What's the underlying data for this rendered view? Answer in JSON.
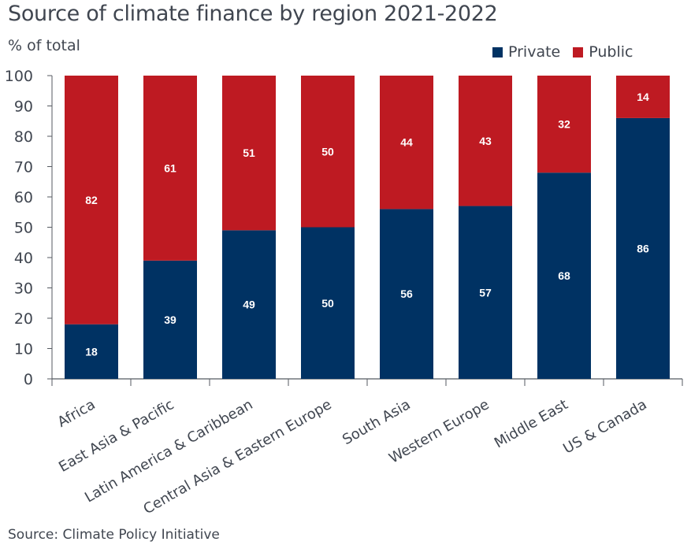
{
  "chart_data": {
    "type": "bar",
    "stacked": true,
    "title": "Source of climate finance by region 2021-2022",
    "ylabel": "% of total",
    "xlabel": "",
    "ylim": [
      0,
      100
    ],
    "yticks": [
      0,
      10,
      20,
      30,
      40,
      50,
      60,
      70,
      80,
      90,
      100
    ],
    "grid": false,
    "legend_position": "top-right",
    "categories": [
      "Africa",
      "East Asia & Pacific",
      "Latin America & Caribbean",
      "Central Asia & Eastern Europe",
      "South Asia",
      "Western Europe",
      "Middle East",
      "US & Canada"
    ],
    "series": [
      {
        "name": "Private",
        "color": "#003263",
        "values": [
          18,
          39,
          49,
          50,
          56,
          57,
          68,
          86
        ]
      },
      {
        "name": "Public",
        "color": "#be1a22",
        "values": [
          82,
          61,
          51,
          50,
          44,
          43,
          32,
          14
        ]
      }
    ],
    "source": "Source: Climate Policy Initiative"
  }
}
